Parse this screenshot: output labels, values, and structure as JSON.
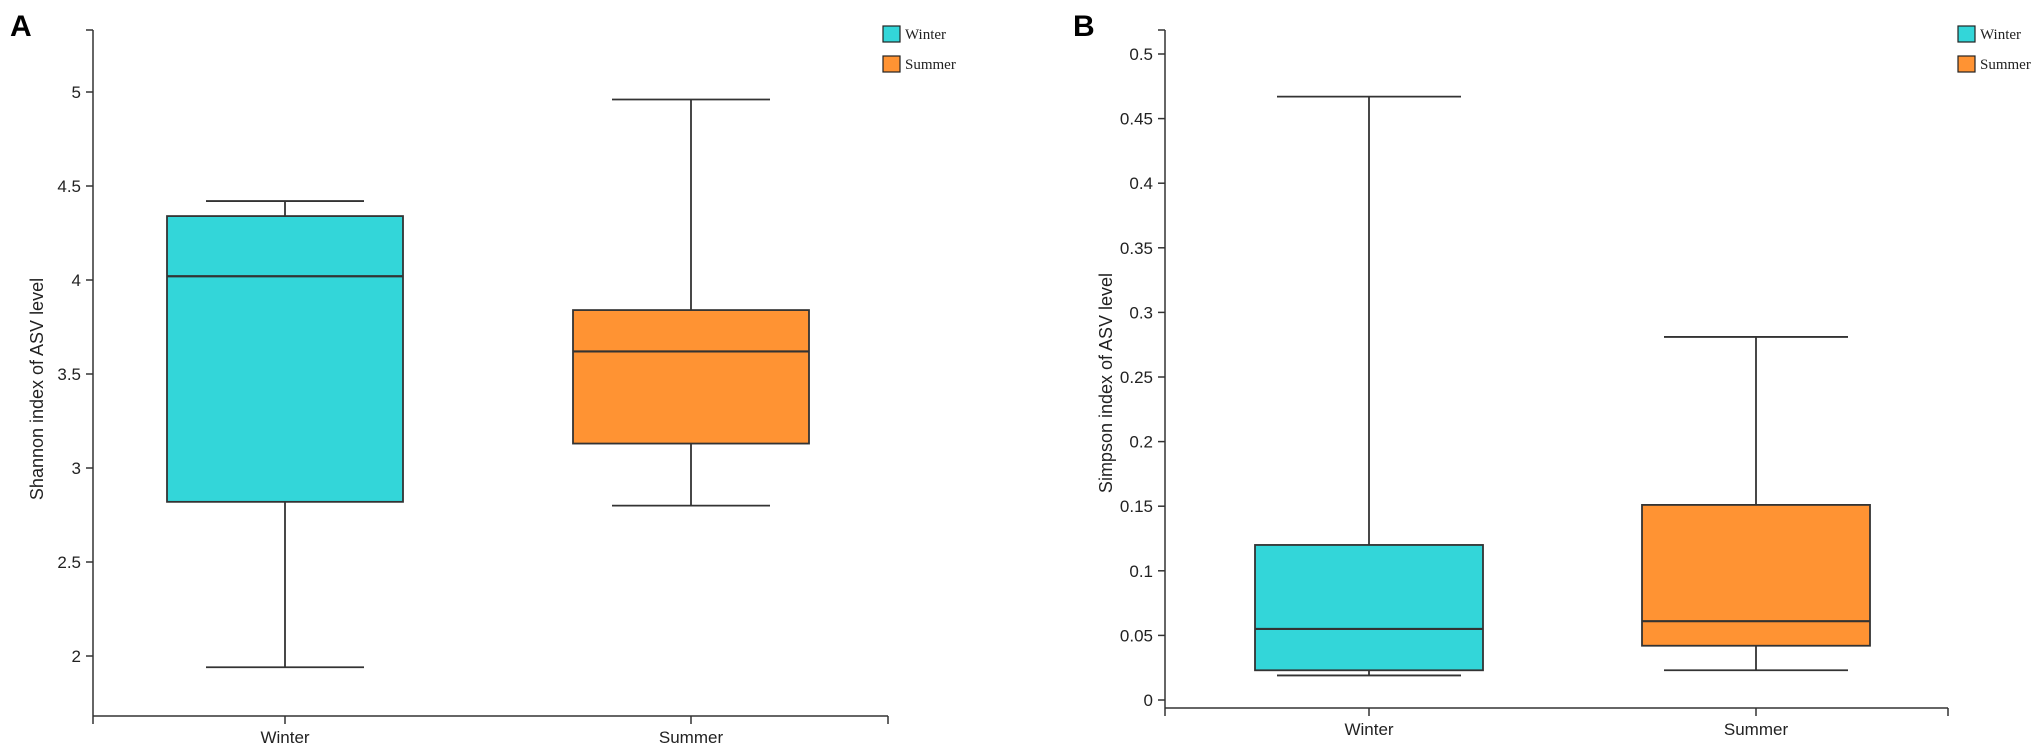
{
  "chart_data": [
    {
      "type": "box",
      "panel_label": "A",
      "ylabel": "Shannon index of ASV level",
      "xlabel": "",
      "ylim": [
        1.7,
        5.3
      ],
      "yticks": [
        2,
        2.5,
        3,
        3.5,
        4,
        4.5,
        5
      ],
      "ytick_labels": [
        "2",
        "2.5",
        "3",
        "3.5",
        "4",
        "4.5",
        "5"
      ],
      "categories": [
        "Winter",
        "Summer"
      ],
      "legend": [
        "Winter",
        "Summer"
      ],
      "legend_position": "top-right",
      "series": [
        {
          "name": "Winter",
          "color": "#33D6D9",
          "min": 1.94,
          "q1": 2.82,
          "median": 4.02,
          "q3": 4.34,
          "max": 4.42
        },
        {
          "name": "Summer",
          "color": "#FF9333",
          "min": 2.8,
          "q1": 3.13,
          "median": 3.62,
          "q3": 3.84,
          "max": 4.96
        }
      ]
    },
    {
      "type": "box",
      "panel_label": "B",
      "ylabel": "Simpson index of ASV level",
      "xlabel": "",
      "ylim": [
        -0.01,
        0.52
      ],
      "yticks": [
        0,
        0.05,
        0.1,
        0.15,
        0.2,
        0.25,
        0.3,
        0.35,
        0.4,
        0.45,
        0.5
      ],
      "ytick_labels": [
        "0",
        "0.05",
        "0.1",
        "0.15",
        "0.2",
        "0.25",
        "0.3",
        "0.35",
        "0.4",
        "0.45",
        "0.5"
      ],
      "categories": [
        "Winter",
        "Summer"
      ],
      "legend": [
        "Winter",
        "Summer"
      ],
      "legend_position": "top-right",
      "series": [
        {
          "name": "Winter",
          "color": "#33D6D9",
          "min": 0.019,
          "q1": 0.023,
          "median": 0.055,
          "q3": 0.12,
          "max": 0.467
        },
        {
          "name": "Summer",
          "color": "#FF9333",
          "min": 0.023,
          "q1": 0.042,
          "median": 0.061,
          "q3": 0.151,
          "max": 0.281
        }
      ]
    }
  ]
}
